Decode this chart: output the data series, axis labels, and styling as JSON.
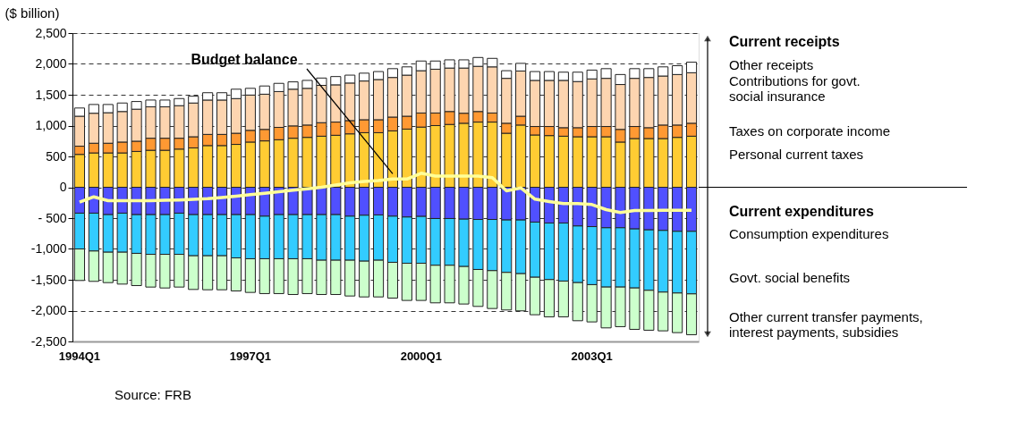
{
  "chart_data": {
    "type": "bar",
    "stacked": true,
    "ylabel": "($ billion)",
    "categories": [
      "1994Q1",
      null,
      null,
      null,
      null,
      null,
      null,
      null,
      null,
      null,
      null,
      null,
      "1997Q1",
      null,
      null,
      null,
      null,
      null,
      null,
      null,
      null,
      null,
      null,
      null,
      "2000Q1",
      null,
      null,
      null,
      null,
      null,
      null,
      null,
      null,
      null,
      null,
      null,
      "2003Q1",
      null,
      null,
      null,
      null,
      null,
      null,
      null
    ],
    "ylim": [
      -2500,
      2500
    ],
    "yticks": [
      {
        "value": -2500,
        "label": "-2,500"
      },
      {
        "value": -2000,
        "label": "-2,000"
      },
      {
        "value": -1500,
        "label": "-1,500"
      },
      {
        "value": -1000,
        "label": "-1,000"
      },
      {
        "value": -500,
        "label": "- 500"
      },
      0,
      {
        "value": 500,
        "label": "500"
      },
      {
        "value": 1000,
        "label": "1,000"
      },
      {
        "value": 1500,
        "label": "1,500"
      },
      {
        "value": 2000,
        "label": "2,000"
      },
      {
        "value": 2500,
        "label": "2,500"
      }
    ],
    "grid": "y",
    "legend": "right",
    "series": [
      {
        "name": "Personal current taxes",
        "color": "#ffcc33",
        "values": [
          533,
          557,
          557,
          557,
          581,
          600,
          600,
          619,
          638,
          676,
          676,
          695,
          733,
          752,
          771,
          795,
          809,
          828,
          843,
          866,
          885,
          885,
          914,
          943,
          976,
          1000,
          1019,
          1038,
          1057,
          1057,
          876,
          1009,
          848,
          838,
          828,
          819,
          819,
          819,
          733,
          790,
          790,
          790,
          809,
          828
        ]
      },
      {
        "name": "Taxes on corporate income",
        "color": "#ff9933",
        "values": [
          133,
          157,
          157,
          176,
          166,
          195,
          195,
          176,
          181,
          181,
          181,
          181,
          190,
          186,
          200,
          200,
          200,
          219,
          214,
          215,
          210,
          210,
          224,
          209,
          228,
          204,
          209,
          162,
          171,
          147,
          162,
          143,
          137,
          147,
          138,
          147,
          166,
          166,
          205,
          195,
          176,
          219,
          200,
          210
        ]
      },
      {
        "name": "Contributions for govt.\n  social insurance",
        "color": "#fdd5b0",
        "values": [
          486,
          486,
          495,
          495,
          519,
          509,
          509,
          528,
          547,
          557,
          557,
          562,
          572,
          571,
          581,
          595,
          595,
          605,
          604,
          609,
          628,
          652,
          642,
          666,
          686,
          710,
          705,
          733,
          733,
          748,
          728,
          733,
          748,
          748,
          767,
          748,
          772,
          781,
          728,
          781,
          814,
          795,
          819,
          819
        ]
      },
      {
        "name": "Other receipts",
        "color": "#ffffff",
        "values": [
          133,
          142,
          133,
          138,
          124,
          110,
          110,
          115,
          110,
          119,
          119,
          152,
          109,
          133,
          133,
          119,
          129,
          119,
          134,
          128,
          127,
          129,
          143,
          134,
          157,
          133,
          133,
          133,
          143,
          138,
          124,
          124,
          143,
          143,
          133,
          152,
          143,
          157,
          162,
          157,
          143,
          148,
          143,
          171
        ]
      },
      {
        "name": "Consumption expenditures",
        "color": "#5050ff",
        "values": [
          -420,
          -420,
          -444,
          -420,
          -444,
          -444,
          -444,
          -420,
          -444,
          -444,
          -444,
          -444,
          -444,
          -469,
          -444,
          -444,
          -444,
          -444,
          -444,
          -469,
          -454,
          -449,
          -469,
          -483,
          -473,
          -507,
          -507,
          -517,
          -522,
          -522,
          -531,
          -531,
          -565,
          -580,
          -580,
          -628,
          -638,
          -657,
          -657,
          -676,
          -691,
          -700,
          -715,
          -715
        ]
      },
      {
        "name": "Govt. social benefits",
        "color": "#33ccff",
        "values": [
          -580,
          -614,
          -609,
          -633,
          -628,
          -643,
          -643,
          -667,
          -667,
          -667,
          -667,
          -701,
          -715,
          -690,
          -715,
          -715,
          -715,
          -739,
          -739,
          -714,
          -744,
          -734,
          -748,
          -749,
          -759,
          -758,
          -758,
          -768,
          -811,
          -830,
          -850,
          -870,
          -894,
          -917,
          -941,
          -918,
          -941,
          -961,
          -961,
          -957,
          -980,
          -1000,
          -1000,
          -1014
        ]
      },
      {
        "name": "Other current transfer payments,\n  interest payments, subsidies",
        "color": "#ccffcc",
        "values": [
          -512,
          -492,
          -493,
          -517,
          -522,
          -531,
          -546,
          -531,
          -546,
          -551,
          -551,
          -536,
          -546,
          -565,
          -565,
          -580,
          -565,
          -556,
          -556,
          -580,
          -580,
          -595,
          -580,
          -603,
          -603,
          -609,
          -609,
          -608,
          -599,
          -614,
          -609,
          -603,
          -608,
          -604,
          -580,
          -618,
          -604,
          -662,
          -642,
          -671,
          -647,
          -628,
          -642,
          -662
        ]
      },
      {
        "type": "line",
        "color": "#ffff99",
        "values": [
          -242,
          -155,
          -217,
          -217,
          -217,
          -217,
          -210,
          -205,
          -195,
          -184,
          -165,
          -145,
          -120,
          -97,
          -72,
          -48,
          -24,
          0,
          36,
          72,
          95,
          110,
          133,
          133,
          228,
          181,
          181,
          181,
          181,
          157,
          -57,
          -10,
          -193,
          -232,
          -266,
          -266,
          -280,
          -362,
          -410,
          -377,
          -377,
          -372,
          -372,
          -372
        ]
      }
    ],
    "annotations": [
      "Budget balance",
      "Current receipts",
      "Current expenditures",
      "Source: FRB"
    ]
  }
}
